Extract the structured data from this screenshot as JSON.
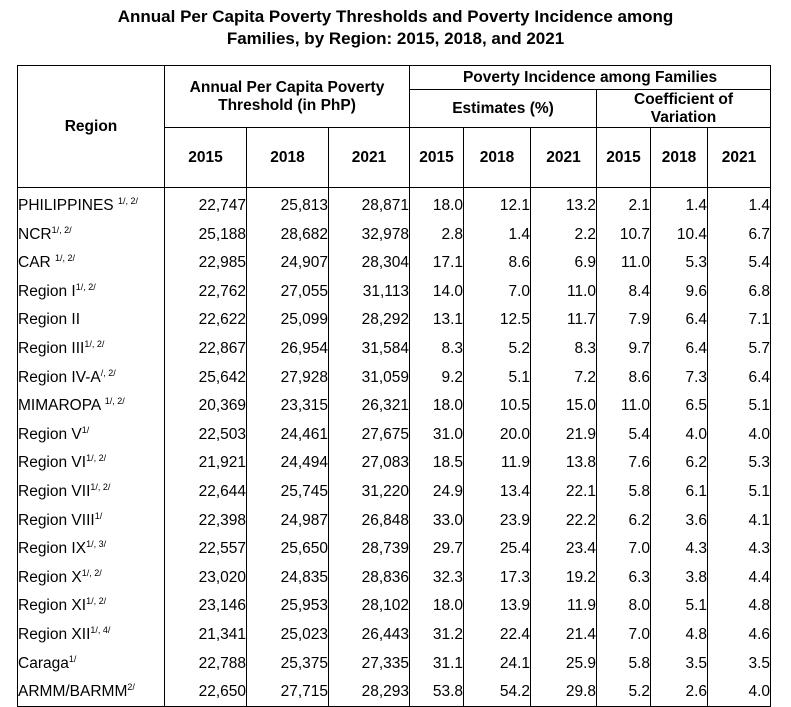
{
  "title": {
    "line1": "Annual Per Capita Poverty Thresholds and Poverty Incidence among",
    "line2": "Families, by Region: 2015, 2018, and 2021"
  },
  "headers": {
    "region": "Region",
    "threshold": "Annual Per Capita Poverty Threshold (in PhP)",
    "incidence": "Poverty Incidence among Families",
    "estimates": "Estimates (%)",
    "cv": "Coefficient of Variation",
    "years": [
      "2015",
      "2018",
      "2021"
    ]
  },
  "rows": [
    {
      "region": "PHILIPPINES ",
      "note": "1/, 2/",
      "t2015": "22,747",
      "t2018": "25,813",
      "t2021": "28,871",
      "e2015": "18.0",
      "e2018": "12.1",
      "e2021": "13.2",
      "c2015": "2.1",
      "c2018": "1.4",
      "c2021": "1.4"
    },
    {
      "region": "NCR",
      "note": "1/, 2/",
      "t2015": "25,188",
      "t2018": "28,682",
      "t2021": "32,978",
      "e2015": "2.8",
      "e2018": "1.4",
      "e2021": "2.2",
      "c2015": "10.7",
      "c2018": "10.4",
      "c2021": "6.7"
    },
    {
      "region": "CAR ",
      "note": "1/, 2/",
      "t2015": "22,985",
      "t2018": "24,907",
      "t2021": "28,304",
      "e2015": "17.1",
      "e2018": "8.6",
      "e2021": "6.9",
      "c2015": "11.0",
      "c2018": "5.3",
      "c2021": "5.4"
    },
    {
      "region": "Region I",
      "note": "1/, 2/",
      "t2015": "22,762",
      "t2018": "27,055",
      "t2021": "31,113",
      "e2015": "14.0",
      "e2018": "7.0",
      "e2021": "11.0",
      "c2015": "8.4",
      "c2018": "9.6",
      "c2021": "6.8"
    },
    {
      "region": "Region II",
      "note": "",
      "t2015": "22,622",
      "t2018": "25,099",
      "t2021": "28,292",
      "e2015": "13.1",
      "e2018": "12.5",
      "e2021": "11.7",
      "c2015": "7.9",
      "c2018": "6.4",
      "c2021": "7.1"
    },
    {
      "region": "Region III",
      "note": "1/, 2/",
      "t2015": "22,867",
      "t2018": "26,954",
      "t2021": "31,584",
      "e2015": "8.3",
      "e2018": "5.2",
      "e2021": "8.3",
      "c2015": "9.7",
      "c2018": "6.4",
      "c2021": "5.7"
    },
    {
      "region": "Region IV-A",
      "note": "/, 2/",
      "t2015": "25,642",
      "t2018": "27,928",
      "t2021": "31,059",
      "e2015": "9.2",
      "e2018": "5.1",
      "e2021": "7.2",
      "c2015": "8.6",
      "c2018": "7.3",
      "c2021": "6.4"
    },
    {
      "region": "MIMAROPA ",
      "note": "1/, 2/",
      "t2015": "20,369",
      "t2018": "23,315",
      "t2021": "26,321",
      "e2015": "18.0",
      "e2018": "10.5",
      "e2021": "15.0",
      "c2015": "11.0",
      "c2018": "6.5",
      "c2021": "5.1"
    },
    {
      "region": "Region V",
      "note": "1/",
      "t2015": "22,503",
      "t2018": "24,461",
      "t2021": "27,675",
      "e2015": "31.0",
      "e2018": "20.0",
      "e2021": "21.9",
      "c2015": "5.4",
      "c2018": "4.0",
      "c2021": "4.0"
    },
    {
      "region": "Region VI",
      "note": "1/, 2/",
      "t2015": "21,921",
      "t2018": "24,494",
      "t2021": "27,083",
      "e2015": "18.5",
      "e2018": "11.9",
      "e2021": "13.8",
      "c2015": "7.6",
      "c2018": "6.2",
      "c2021": "5.3"
    },
    {
      "region": "Region VII",
      "note": "1/, 2/",
      "t2015": "22,644",
      "t2018": "25,745",
      "t2021": "31,220",
      "e2015": "24.9",
      "e2018": "13.4",
      "e2021": "22.1",
      "c2015": "5.8",
      "c2018": "6.1",
      "c2021": "5.1"
    },
    {
      "region": "Region VIII",
      "note": "1/",
      "t2015": "22,398",
      "t2018": "24,987",
      "t2021": "26,848",
      "e2015": "33.0",
      "e2018": "23.9",
      "e2021": "22.2",
      "c2015": "6.2",
      "c2018": "3.6",
      "c2021": "4.1"
    },
    {
      "region": "Region IX",
      "note": "1/, 3/",
      "t2015": "22,557",
      "t2018": "25,650",
      "t2021": "28,739",
      "e2015": "29.7",
      "e2018": "25.4",
      "e2021": "23.4",
      "c2015": "7.0",
      "c2018": "4.3",
      "c2021": "4.3"
    },
    {
      "region": "Region X",
      "note": "1/, 2/",
      "t2015": "23,020",
      "t2018": "24,835",
      "t2021": "28,836",
      "e2015": "32.3",
      "e2018": "17.3",
      "e2021": "19.2",
      "c2015": "6.3",
      "c2018": "3.8",
      "c2021": "4.4"
    },
    {
      "region": "Region XI",
      "note": "1/, 2/",
      "t2015": "23,146",
      "t2018": "25,953",
      "t2021": "28,102",
      "e2015": "18.0",
      "e2018": "13.9",
      "e2021": "11.9",
      "c2015": "8.0",
      "c2018": "5.1",
      "c2021": "4.8"
    },
    {
      "region": "Region XII",
      "note": "1/, 4/",
      "t2015": "21,341",
      "t2018": "25,023",
      "t2021": "26,443",
      "e2015": "31.2",
      "e2018": "22.4",
      "e2021": "21.4",
      "c2015": "7.0",
      "c2018": "4.8",
      "c2021": "4.6"
    },
    {
      "region": "Caraga",
      "note": "1/",
      "t2015": "22,788",
      "t2018": "25,375",
      "t2021": "27,335",
      "e2015": "31.1",
      "e2018": "24.1",
      "e2021": "25.9",
      "c2015": "5.8",
      "c2018": "3.5",
      "c2021": "3.5"
    },
    {
      "region": "ARMM/BARMM",
      "note": "2/",
      "t2015": "22,650",
      "t2018": "27,715",
      "t2021": "28,293",
      "e2015": "53.8",
      "e2018": "54.2",
      "e2021": "29.8",
      "c2015": "5.2",
      "c2018": "2.6",
      "c2021": "4.0"
    }
  ]
}
